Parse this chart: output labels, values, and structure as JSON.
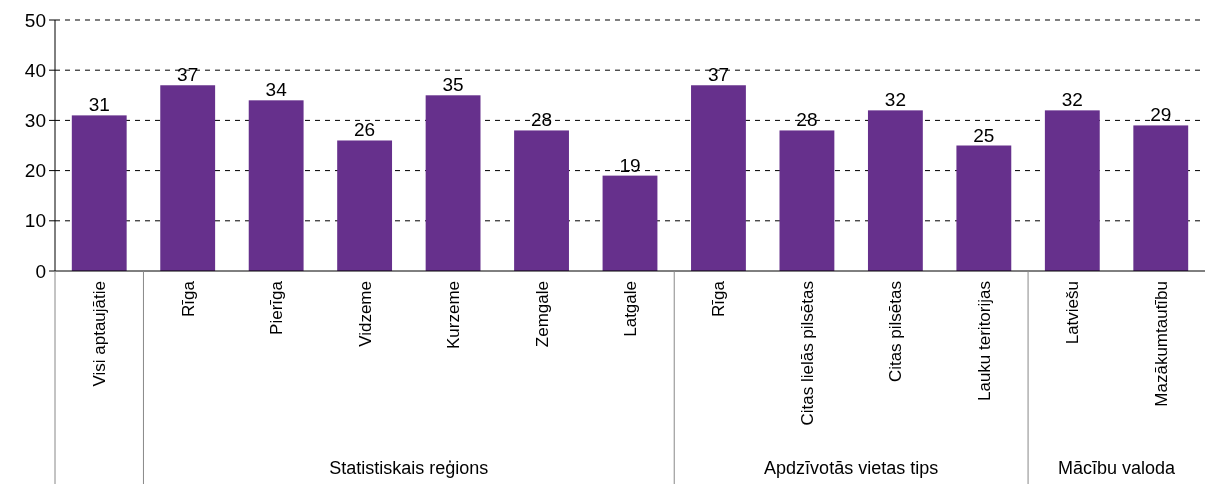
{
  "chart_data": {
    "type": "bar",
    "categories": [
      "Visi aptaujātie",
      "Rīga",
      "Pierīga",
      "Vidzeme",
      "Kurzeme",
      "Zemgale",
      "Latgale",
      "Rīga",
      "Citas lielās pilsētas",
      "Citas pilsētas",
      "Lauku teritorijas",
      "Latviešu",
      "Mazākumtautību"
    ],
    "values": [
      31,
      37,
      34,
      26,
      35,
      28,
      19,
      37,
      28,
      32,
      25,
      32,
      29
    ],
    "color": "#66308c",
    "ylim": [
      0,
      50
    ],
    "yticks": [
      0,
      10,
      20,
      30,
      40,
      50
    ],
    "grid": "y",
    "data_labels": true,
    "annotations": [
      "Statistiskais reģions",
      "Apdzīvotās vietas tips",
      "Mācību valoda"
    ]
  }
}
